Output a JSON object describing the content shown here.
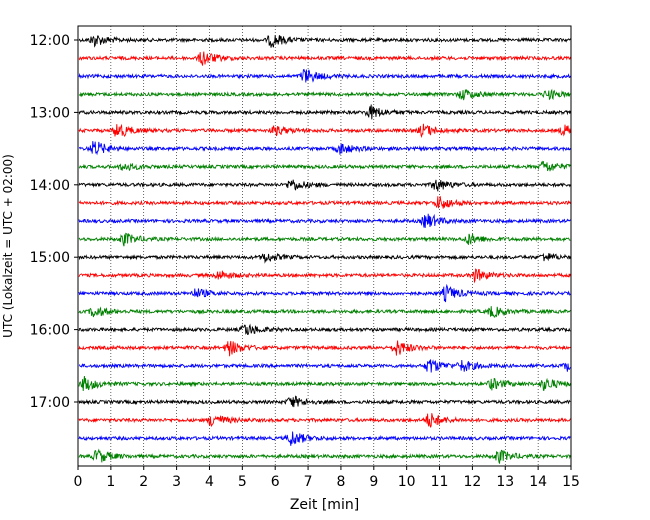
{
  "chart_data": {
    "type": "line",
    "subtype": "helicorder",
    "xlabel": "Zeit  [min]",
    "ylabel": "UTC (Lokalzeit = UTC + 02:00)",
    "xlim": [
      0,
      15
    ],
    "x_ticks": [
      "0",
      "1",
      "2",
      "3",
      "4",
      "5",
      "6",
      "7",
      "8",
      "9",
      "10",
      "11",
      "12",
      "13",
      "14",
      "15"
    ],
    "y_ticks": [
      "12:00",
      "13:00",
      "14:00",
      "15:00",
      "16:00",
      "17:00"
    ],
    "grid": "vertical-dotted",
    "colors": [
      "#000000",
      "#ff0000",
      "#0000ff",
      "#008000"
    ],
    "traces": [
      {
        "start": "12:00",
        "events": [
          [
            0.5,
            0.8
          ],
          [
            5.9,
            0.9
          ]
        ]
      },
      {
        "start": "12:15",
        "events": [
          [
            3.8,
            1.0
          ]
        ]
      },
      {
        "start": "12:30",
        "events": [
          [
            6.9,
            1.0
          ]
        ]
      },
      {
        "start": "12:45",
        "events": [
          [
            11.7,
            0.7
          ],
          [
            14.3,
            0.6
          ]
        ]
      },
      {
        "start": "13:00",
        "events": [
          [
            8.9,
            0.9
          ]
        ]
      },
      {
        "start": "13:15",
        "events": [
          [
            1.2,
            1.0
          ],
          [
            6.0,
            0.6
          ],
          [
            10.5,
            0.8
          ],
          [
            14.8,
            0.7
          ]
        ]
      },
      {
        "start": "13:30",
        "events": [
          [
            0.5,
            1.0
          ],
          [
            8.0,
            0.7
          ]
        ]
      },
      {
        "start": "13:45",
        "events": [
          [
            1.4,
            0.5
          ],
          [
            14.2,
            0.8
          ]
        ]
      },
      {
        "start": "14:00",
        "events": [
          [
            6.5,
            0.8
          ],
          [
            10.9,
            0.8
          ]
        ]
      },
      {
        "start": "14:15",
        "events": [
          [
            11.0,
            0.9
          ]
        ]
      },
      {
        "start": "14:30",
        "events": [
          [
            10.6,
            1.0
          ]
        ]
      },
      {
        "start": "14:45",
        "events": [
          [
            1.4,
            0.8
          ],
          [
            11.9,
            0.7
          ]
        ]
      },
      {
        "start": "15:00",
        "events": [
          [
            5.7,
            0.6
          ],
          [
            14.2,
            0.5
          ]
        ]
      },
      {
        "start": "15:15",
        "events": [
          [
            4.3,
            0.6
          ],
          [
            12.1,
            0.8
          ]
        ]
      },
      {
        "start": "15:30",
        "events": [
          [
            3.6,
            0.6
          ],
          [
            11.2,
            1.0
          ]
        ]
      },
      {
        "start": "15:45",
        "events": [
          [
            0.5,
            0.7
          ],
          [
            12.6,
            0.7
          ]
        ]
      },
      {
        "start": "16:00",
        "events": [
          [
            5.1,
            0.8
          ]
        ]
      },
      {
        "start": "16:15",
        "events": [
          [
            4.6,
            1.0
          ],
          [
            9.7,
            1.0
          ]
        ]
      },
      {
        "start": "16:30",
        "events": [
          [
            10.7,
            1.0
          ],
          [
            11.7,
            0.7
          ],
          [
            14.9,
            0.6
          ]
        ]
      },
      {
        "start": "16:45",
        "events": [
          [
            0.2,
            0.9
          ],
          [
            12.6,
            0.7
          ],
          [
            14.2,
            0.8
          ]
        ]
      },
      {
        "start": "17:00",
        "events": [
          [
            6.5,
            0.8
          ]
        ]
      },
      {
        "start": "17:15",
        "events": [
          [
            4.1,
            0.9
          ],
          [
            10.7,
            1.0
          ]
        ]
      },
      {
        "start": "17:30",
        "events": [
          [
            6.5,
            1.0
          ]
        ]
      },
      {
        "start": "17:45",
        "events": [
          [
            0.6,
            0.9
          ],
          [
            12.8,
            0.9
          ]
        ]
      }
    ]
  }
}
